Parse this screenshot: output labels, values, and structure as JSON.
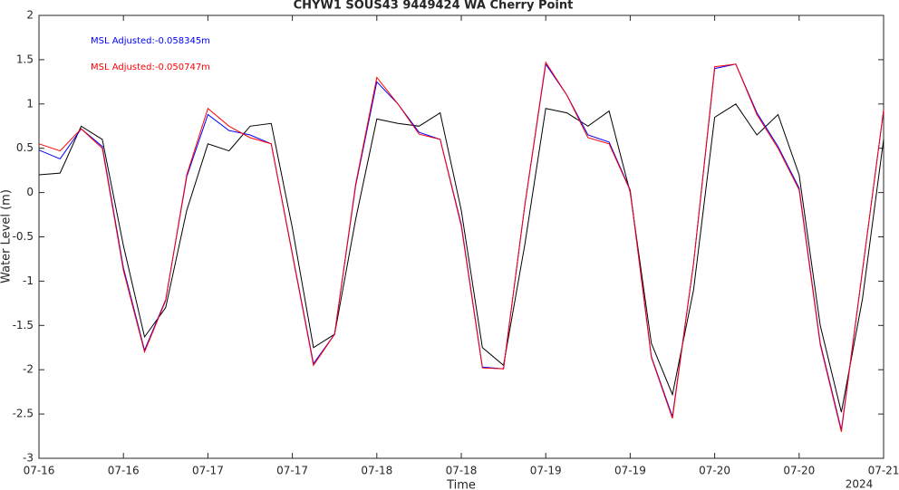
{
  "chart_data": {
    "type": "line",
    "title": "CHYW1 SOUS43 9449424 WA Cherry Point",
    "xlabel": "Time",
    "ylabel": "Water Level (m)",
    "x_annotation": "2024",
    "x": [
      0,
      3,
      6,
      9,
      12,
      15,
      18,
      21,
      24,
      27,
      30,
      33,
      36,
      39,
      42,
      45,
      48,
      51,
      54,
      57,
      60,
      63,
      66,
      69,
      72,
      75,
      78,
      81,
      84,
      87,
      90,
      93,
      96,
      99,
      102,
      105,
      108,
      111,
      114,
      117,
      120
    ],
    "series": [
      {
        "color": "#000000",
        "values": [
          0.2,
          0.22,
          0.75,
          0.6,
          -0.6,
          -1.63,
          -1.3,
          -0.2,
          0.55,
          0.47,
          0.75,
          0.78,
          -0.4,
          -1.75,
          -1.6,
          -0.3,
          0.83,
          0.78,
          0.75,
          0.9,
          -0.2,
          -1.75,
          -1.95,
          -0.6,
          0.95,
          0.9,
          0.75,
          0.92,
          0.0,
          -1.7,
          -2.28,
          -1.1,
          0.85,
          1.0,
          0.65,
          0.88,
          0.2,
          -1.5,
          -2.48,
          -1.2,
          0.6
        ]
      },
      {
        "name": "MSL Adjusted:-0.058345m",
        "color": "#0000ff",
        "values": [
          0.48,
          0.38,
          0.72,
          0.52,
          -0.85,
          -1.78,
          -1.21,
          0.18,
          0.88,
          0.7,
          0.65,
          0.55,
          -0.69,
          -1.93,
          -1.6,
          0.08,
          1.25,
          1.0,
          0.68,
          0.6,
          -0.36,
          -1.97,
          -1.99,
          -0.16,
          1.45,
          1.1,
          0.65,
          0.57,
          0.03,
          -1.85,
          -2.53,
          -0.8,
          1.4,
          1.45,
          0.9,
          0.52,
          0.05,
          -1.7,
          -2.68,
          -0.88,
          0.93
        ]
      },
      {
        "name": "MSL Adjusted:-0.050747m",
        "color": "#ff0000",
        "values": [
          0.55,
          0.47,
          0.72,
          0.5,
          -0.88,
          -1.8,
          -1.22,
          0.2,
          0.95,
          0.75,
          0.62,
          0.55,
          -0.7,
          -1.95,
          -1.6,
          0.1,
          1.3,
          1.0,
          0.66,
          0.6,
          -0.38,
          -1.98,
          -1.99,
          -0.16,
          1.47,
          1.1,
          0.62,
          0.55,
          0.02,
          -1.86,
          -2.55,
          -0.8,
          1.42,
          1.45,
          0.88,
          0.5,
          0.03,
          -1.72,
          -2.7,
          -0.88,
          0.93
        ]
      }
    ],
    "xlim": [
      0,
      120
    ],
    "xticks": [
      {
        "value": 0,
        "label": "07-16"
      },
      {
        "value": 12,
        "label": "07-16"
      },
      {
        "value": 24,
        "label": "07-17"
      },
      {
        "value": 36,
        "label": "07-17"
      },
      {
        "value": 48,
        "label": "07-18"
      },
      {
        "value": 60,
        "label": "07-18"
      },
      {
        "value": 72,
        "label": "07-19"
      },
      {
        "value": 84,
        "label": "07-19"
      },
      {
        "value": 96,
        "label": "07-20"
      },
      {
        "value": 108,
        "label": "07-20"
      },
      {
        "value": 120,
        "label": "07-21"
      }
    ],
    "ylim": [
      -3,
      2
    ],
    "yticks": [
      2,
      1.5,
      1,
      0.5,
      0,
      -0.5,
      -1,
      -1.5,
      -2,
      -2.5,
      -3
    ],
    "grid": false,
    "legend": "upper left"
  }
}
